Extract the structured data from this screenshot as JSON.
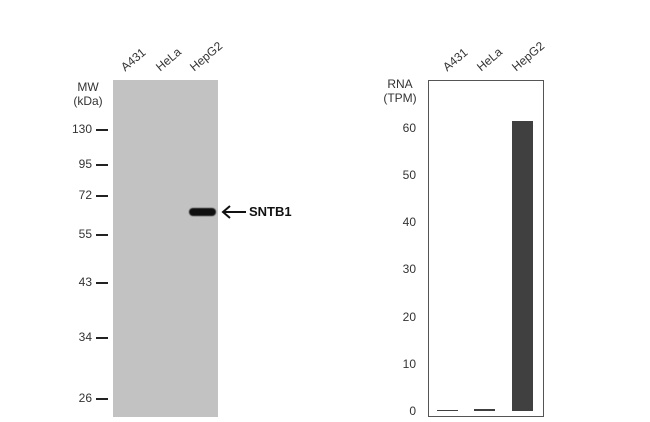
{
  "western_blot": {
    "mw_title_line1": "MW",
    "mw_title_line2": "(kDa)",
    "lanes": [
      "A431",
      "HeLa",
      "HepG2"
    ],
    "markers": [
      {
        "label": "130",
        "kda": 130
      },
      {
        "label": "95",
        "kda": 95
      },
      {
        "label": "72",
        "kda": 72
      },
      {
        "label": "55",
        "kda": 55
      },
      {
        "label": "43",
        "kda": 43
      },
      {
        "label": "34",
        "kda": 34
      },
      {
        "label": "26",
        "kda": 26
      }
    ],
    "band_lane": "HepG2",
    "target_label": "SNTB1"
  },
  "chart_data": {
    "type": "bar",
    "ylabel_line1": "RNA",
    "ylabel_line2": "(TPM)",
    "categories": [
      "A431",
      "HeLa",
      "HepG2"
    ],
    "values": [
      0.2,
      0.5,
      61.5
    ],
    "ylim": [
      0,
      60
    ],
    "yticks": [
      "0",
      "10",
      "20",
      "30",
      "40",
      "50",
      "60"
    ],
    "bar_color": "#404040"
  }
}
